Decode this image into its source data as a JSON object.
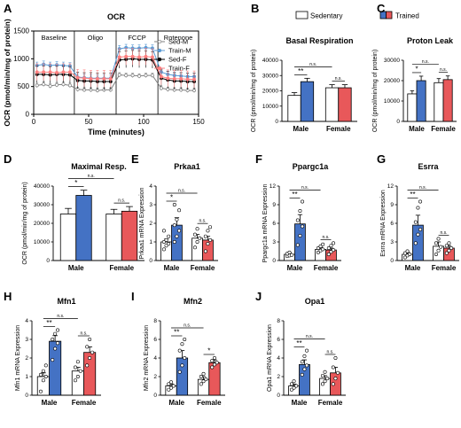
{
  "colors": {
    "sed_m": "#ffffff",
    "train_m": "#4472c4",
    "sed_f": "#ffffff",
    "train_f": "#e8585a",
    "sed_m_line": "#7f7f7f",
    "train_m_line": "#5b9bd5",
    "sed_f_line": "#000000",
    "train_f_line": "#ff7f7f"
  },
  "legend": {
    "sedentary": "Sedentary",
    "trained": "Trained"
  },
  "panel_letters": [
    "A",
    "B",
    "C",
    "D",
    "E",
    "F",
    "G",
    "H",
    "I",
    "J"
  ],
  "chart_data": [
    {
      "id": "A",
      "type": "line",
      "title": "OCR",
      "xlabel": "Time (minutes)",
      "ylabel": "OCR (pmol/min/mg of protein)",
      "xlim": [
        0,
        150
      ],
      "ylim": [
        0,
        1500
      ],
      "xticks": [
        0,
        50,
        100,
        150
      ],
      "yticks": [
        0,
        500,
        1000,
        1500
      ],
      "phases": [
        {
          "label": "Baseline",
          "start": 0,
          "end": 37
        },
        {
          "label": "Oligo",
          "start": 37,
          "end": 75
        },
        {
          "label": "FCCP",
          "start": 75,
          "end": 113
        },
        {
          "label": "Rotenone",
          "start": 113,
          "end": 150
        }
      ],
      "x": [
        3,
        9,
        15,
        21,
        27,
        33,
        40,
        46,
        52,
        58,
        64,
        70,
        78,
        84,
        90,
        96,
        102,
        108,
        116,
        122,
        128,
        134,
        140,
        146
      ],
      "series": [
        {
          "name": "Sed-M",
          "values": [
            520,
            540,
            510,
            530,
            540,
            520,
            450,
            440,
            440,
            430,
            440,
            440,
            710,
            700,
            700,
            690,
            700,
            700,
            470,
            450,
            440,
            440,
            430,
            430
          ],
          "err": 40
        },
        {
          "name": "Train-M",
          "values": [
            880,
            900,
            880,
            890,
            880,
            870,
            670,
            660,
            650,
            650,
            650,
            650,
            1180,
            1200,
            1190,
            1190,
            1200,
            1190,
            760,
            720,
            700,
            690,
            680,
            680
          ],
          "err": 60
        },
        {
          "name": "Sed-F",
          "values": [
            720,
            720,
            710,
            720,
            720,
            710,
            610,
            600,
            600,
            590,
            590,
            590,
            980,
            990,
            1000,
            990,
            990,
            980,
            650,
            620,
            600,
            600,
            590,
            590
          ],
          "err": 150
        },
        {
          "name": "Train-F",
          "values": [
            760,
            760,
            760,
            750,
            760,
            760,
            660,
            650,
            640,
            640,
            640,
            640,
            1030,
            1040,
            1040,
            1030,
            1040,
            1030,
            680,
            650,
            640,
            640,
            630,
            630
          ],
          "err": 150
        }
      ]
    },
    {
      "id": "B",
      "type": "bar",
      "title": "Basal Respiration",
      "ylabel": "OCR (pmol/min/mg of protein)",
      "categories": [
        "Male",
        "Female"
      ],
      "ylim": [
        0,
        40000
      ],
      "yticks": [
        0,
        10000,
        20000,
        30000,
        40000
      ],
      "series": [
        {
          "name": "Sedentary",
          "values": [
            17000,
            22000
          ],
          "err": [
            1800,
            2000
          ]
        },
        {
          "name": "Trained",
          "values": [
            26000,
            22000
          ],
          "err": [
            2200,
            2000
          ]
        }
      ],
      "significance": [
        {
          "pair": [
            0,
            1
          ],
          "label": "**"
        },
        {
          "pair": [
            0,
            2
          ],
          "label": "n.s."
        },
        {
          "pair": [
            2,
            3
          ],
          "label": "n.s."
        }
      ]
    },
    {
      "id": "C",
      "type": "bar",
      "title": "Proton Leak",
      "ylabel": "OCR (pmol/min/mg of protein)",
      "categories": [
        "Male",
        "Female"
      ],
      "ylim": [
        0,
        30000
      ],
      "yticks": [
        0,
        10000,
        20000,
        30000
      ],
      "series": [
        {
          "name": "Sedentary",
          "values": [
            13500,
            19000
          ],
          "err": [
            1500,
            2000
          ]
        },
        {
          "name": "Trained",
          "values": [
            20000,
            20500
          ],
          "err": [
            2200,
            1800
          ]
        }
      ],
      "significance": [
        {
          "pair": [
            0,
            1
          ],
          "label": "*"
        },
        {
          "pair": [
            0,
            2
          ],
          "label": "n.s."
        },
        {
          "pair": [
            2,
            3
          ],
          "label": "n.s."
        }
      ]
    },
    {
      "id": "D",
      "type": "bar",
      "title": "Maximal Resp.",
      "ylabel": "OCR (pmol/min/mg of protein)",
      "categories": [
        "Male",
        "Female"
      ],
      "ylim": [
        0,
        40000
      ],
      "yticks": [
        0,
        10000,
        20000,
        30000,
        40000
      ],
      "series": [
        {
          "name": "Sedentary",
          "values": [
            25000,
            25000
          ],
          "err": [
            3000,
            2500
          ]
        },
        {
          "name": "Trained",
          "values": [
            35000,
            26500
          ],
          "err": [
            2800,
            2500
          ]
        }
      ],
      "significance": [
        {
          "pair": [
            0,
            1
          ],
          "label": "*"
        },
        {
          "pair": [
            0,
            2
          ],
          "label": "n.s."
        },
        {
          "pair": [
            2,
            3
          ],
          "label": "n.s."
        }
      ]
    },
    {
      "id": "E",
      "type": "bar",
      "title": "Prkaa1",
      "ylabel": "Prkaa1 mRNA Expression",
      "categories": [
        "Male",
        "Female"
      ],
      "ylim": [
        0,
        4
      ],
      "yticks": [
        0,
        1,
        2,
        3,
        4
      ],
      "series": [
        {
          "name": "Sedentary",
          "values": [
            1.0,
            1.2
          ],
          "err": [
            0.15,
            0.2
          ],
          "points": [
            [
              0.6,
              0.8,
              0.9,
              1.0,
              1.1,
              1.3,
              1.6
            ],
            [
              0.7,
              1.0,
              1.2,
              1.4,
              1.7
            ]
          ]
        },
        {
          "name": "Trained",
          "values": [
            1.9,
            1.1
          ],
          "err": [
            0.4,
            0.2
          ],
          "points": [
            [
              1.0,
              1.3,
              1.6,
              1.9,
              2.2,
              2.7,
              3.0
            ],
            [
              0.5,
              0.9,
              1.1,
              1.3,
              1.6,
              1.8
            ]
          ]
        }
      ],
      "significance": [
        {
          "pair": [
            0,
            1
          ],
          "label": "*"
        },
        {
          "pair": [
            0,
            2
          ],
          "label": "n.s."
        },
        {
          "pair": [
            2,
            3
          ],
          "label": "n.s."
        }
      ]
    },
    {
      "id": "F",
      "type": "bar",
      "title": "Ppargc1a",
      "ylabel": "Ppargc1a mRNA Expression",
      "categories": [
        "Male",
        "Female"
      ],
      "ylim": [
        0,
        12
      ],
      "yticks": [
        0,
        3,
        6,
        9,
        12
      ],
      "series": [
        {
          "name": "Sedentary",
          "values": [
            1.0,
            1.8
          ],
          "err": [
            0.2,
            0.3
          ],
          "points": [
            [
              0.7,
              0.8,
              0.9,
              1.1,
              1.3
            ],
            [
              1.3,
              1.6,
              1.8,
              2.0,
              2.3,
              2.6
            ]
          ]
        },
        {
          "name": "Trained",
          "values": [
            5.9,
            1.7
          ],
          "err": [
            1.5,
            0.3
          ],
          "points": [
            [
              2.5,
              4.0,
              5.5,
              6.5,
              8.0,
              9.5
            ],
            [
              1.0,
              1.4,
              1.7,
              2.0,
              2.4,
              2.8
            ]
          ]
        }
      ],
      "significance": [
        {
          "pair": [
            0,
            1
          ],
          "label": "**"
        },
        {
          "pair": [
            0,
            2
          ],
          "label": "n.s."
        },
        {
          "pair": [
            2,
            3
          ],
          "label": "n.s."
        }
      ]
    },
    {
      "id": "G",
      "type": "bar",
      "title": "Esrra",
      "ylabel": "Esrra mRNA Expression",
      "categories": [
        "Male",
        "Female"
      ],
      "ylim": [
        0,
        12
      ],
      "yticks": [
        0,
        3,
        6,
        9,
        12
      ],
      "series": [
        {
          "name": "Sedentary",
          "values": [
            1.0,
            2.3
          ],
          "err": [
            0.3,
            0.7
          ],
          "points": [
            [
              0.5,
              0.8,
              1.0,
              1.2,
              1.5
            ],
            [
              1.0,
              1.6,
              2.2,
              2.8,
              3.5
            ]
          ]
        },
        {
          "name": "Trained",
          "values": [
            5.7,
            2.0
          ],
          "err": [
            1.6,
            0.4
          ],
          "points": [
            [
              2.8,
              4.2,
              5.0,
              6.2,
              8.5,
              9.5
            ],
            [
              1.2,
              1.6,
              2.0,
              2.4,
              2.8
            ]
          ]
        }
      ],
      "significance": [
        {
          "pair": [
            0,
            1
          ],
          "label": "**"
        },
        {
          "pair": [
            0,
            2
          ],
          "label": "n.s."
        },
        {
          "pair": [
            2,
            3
          ],
          "label": "n.s."
        }
      ]
    },
    {
      "id": "H",
      "type": "bar",
      "title": "Mfn1",
      "ylabel": "Mfn1 mRNA Expression",
      "categories": [
        "Male",
        "Female"
      ],
      "ylim": [
        0,
        4
      ],
      "yticks": [
        0,
        1,
        2,
        3,
        4
      ],
      "series": [
        {
          "name": "Sedentary",
          "values": [
            1.0,
            1.3
          ],
          "err": [
            0.2,
            0.2
          ],
          "points": [
            [
              0.2,
              0.8,
              1.0,
              1.1,
              1.3,
              1.6
            ],
            [
              0.8,
              1.0,
              1.3,
              1.5,
              1.8
            ]
          ]
        },
        {
          "name": "Trained",
          "values": [
            2.9,
            2.3
          ],
          "err": [
            0.3,
            0.3
          ],
          "points": [
            [
              1.9,
              2.5,
              2.8,
              3.0,
              3.3,
              3.5
            ],
            [
              1.6,
              2.0,
              2.3,
              2.6,
              3.0
            ]
          ]
        }
      ],
      "significance": [
        {
          "pair": [
            0,
            1
          ],
          "label": "**"
        },
        {
          "pair": [
            0,
            2
          ],
          "label": "n.s."
        },
        {
          "pair": [
            2,
            3
          ],
          "label": "n.s."
        }
      ]
    },
    {
      "id": "I",
      "type": "bar",
      "title": "Mfn2",
      "ylabel": "Mfn2 mRNA Expression",
      "categories": [
        "Male",
        "Female"
      ],
      "ylim": [
        0,
        8
      ],
      "yticks": [
        0,
        2,
        4,
        6,
        8
      ],
      "series": [
        {
          "name": "Sedentary",
          "values": [
            1.0,
            1.7
          ],
          "err": [
            0.2,
            0.3
          ],
          "points": [
            [
              0.6,
              0.8,
              1.0,
              1.2,
              1.4
            ],
            [
              1.2,
              1.5,
              1.7,
              2.0,
              2.3
            ]
          ]
        },
        {
          "name": "Trained",
          "values": [
            4.0,
            3.5
          ],
          "err": [
            0.8,
            0.3
          ],
          "points": [
            [
              2.5,
              3.2,
              4.0,
              4.8,
              5.5,
              6.0
            ],
            [
              3.0,
              3.3,
              3.5,
              3.7,
              4.0
            ]
          ]
        }
      ],
      "significance": [
        {
          "pair": [
            0,
            1
          ],
          "label": "**"
        },
        {
          "pair": [
            0,
            2
          ],
          "label": "n.s."
        },
        {
          "pair": [
            2,
            3
          ],
          "label": "*"
        }
      ]
    },
    {
      "id": "J",
      "type": "bar",
      "title": "Opa1",
      "ylabel": "Opa1 mRNA Expression",
      "categories": [
        "Male",
        "Female"
      ],
      "ylim": [
        0,
        8
      ],
      "yticks": [
        0,
        2,
        4,
        6,
        8
      ],
      "series": [
        {
          "name": "Sedentary",
          "values": [
            1.0,
            1.8
          ],
          "err": [
            0.2,
            0.3
          ],
          "points": [
            [
              0.6,
              0.8,
              1.0,
              1.2,
              1.5
            ],
            [
              1.2,
              1.5,
              1.8,
              2.1,
              2.5
            ]
          ]
        },
        {
          "name": "Trained",
          "values": [
            3.3,
            2.4
          ],
          "err": [
            0.5,
            0.6
          ],
          "points": [
            [
              2.2,
              2.8,
              3.2,
              3.6,
              4.2,
              4.8
            ],
            [
              1.2,
              1.8,
              2.4,
              3.0,
              4.0
            ]
          ]
        }
      ],
      "significance": [
        {
          "pair": [
            0,
            1
          ],
          "label": "**"
        },
        {
          "pair": [
            0,
            2
          ],
          "label": "n.s."
        },
        {
          "pair": [
            2,
            3
          ],
          "label": "n.s."
        }
      ]
    }
  ]
}
